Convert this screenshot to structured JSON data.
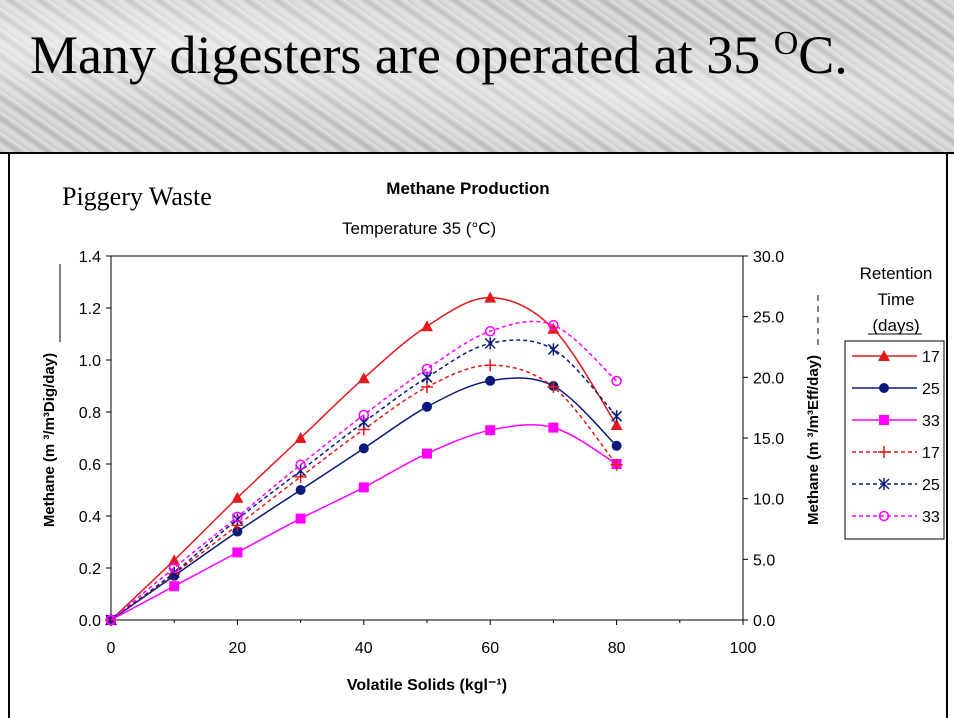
{
  "slide": {
    "title_main": "Many digesters are operated at 35 ",
    "title_sup": "O",
    "title_end": "C.",
    "subtitle": "Piggery Waste"
  },
  "chart_data": {
    "type": "line",
    "title": "Methane Production",
    "subtitle": "Temperature    35          (°C)",
    "xlabel": "Volatile Solids (kgl⁻¹)",
    "ylabel_left": "Methane (m ³/m³Dig/day)",
    "ylabel_right": "Methane (m ³/m³Eff/day)",
    "xlim": [
      0,
      100
    ],
    "ylim_left": [
      0,
      1.4
    ],
    "ylim_right": [
      0,
      30
    ],
    "x_ticks": [
      "0",
      "20",
      "40",
      "60",
      "80",
      "100"
    ],
    "y_ticks_left": [
      "0.0",
      "0.2",
      "0.4",
      "0.6",
      "0.8",
      "1.0",
      "1.2",
      "1.4"
    ],
    "y_ticks_right": [
      "0.0",
      "5.0",
      "10.0",
      "15.0",
      "20.0",
      "25.0",
      "30.0"
    ],
    "legend_title": [
      "Retention",
      "Time",
      "(days)"
    ],
    "legend_position": "right",
    "grid": false,
    "x": [
      0,
      10,
      20,
      30,
      40,
      50,
      60,
      70,
      80
    ],
    "series": [
      {
        "name": "17",
        "axis": "left",
        "style": "solid",
        "color": "#e31a1c",
        "marker": "triangle",
        "values": [
          0,
          0.23,
          0.47,
          0.7,
          0.93,
          1.13,
          1.24,
          1.12,
          0.75
        ]
      },
      {
        "name": "25",
        "axis": "left",
        "style": "solid",
        "color": "#0a1a7a",
        "marker": "circle",
        "values": [
          0,
          0.17,
          0.34,
          0.5,
          0.66,
          0.82,
          0.92,
          0.9,
          0.67
        ]
      },
      {
        "name": "33",
        "axis": "left",
        "style": "solid",
        "color": "#ff00ff",
        "marker": "square",
        "values": [
          0,
          0.13,
          0.26,
          0.39,
          0.51,
          0.64,
          0.73,
          0.74,
          0.6
        ]
      },
      {
        "name": "17",
        "axis": "right",
        "style": "dashed",
        "color": "#e31a1c",
        "marker": "plus",
        "values": [
          0,
          3.8,
          7.8,
          11.8,
          15.7,
          19.2,
          21.0,
          19.2,
          12.8
        ]
      },
      {
        "name": "25",
        "axis": "right",
        "style": "dashed",
        "color": "#0a1a7a",
        "marker": "asterisk",
        "values": [
          0,
          3.9,
          8.3,
          12.3,
          16.3,
          20.0,
          22.8,
          22.3,
          16.8
        ]
      },
      {
        "name": "33",
        "axis": "right",
        "style": "dashed",
        "color": "#ff00ff",
        "marker": "circle-open",
        "values": [
          0,
          4.3,
          8.5,
          12.8,
          16.9,
          20.7,
          23.8,
          24.3,
          19.7
        ]
      }
    ]
  }
}
